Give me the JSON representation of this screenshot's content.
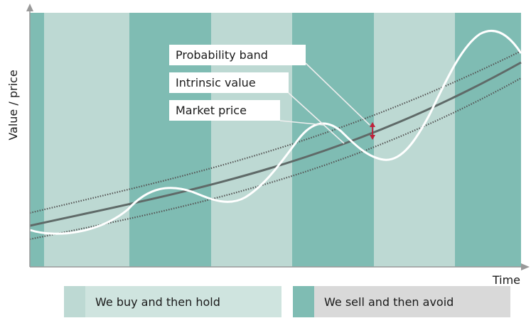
{
  "chart_data": {
    "type": "line",
    "ylabel": "Value / price",
    "xlabel": "Time",
    "annotations": [
      "Probability band",
      "Intrinsic value",
      "Market price"
    ],
    "legend": {
      "buy": "We buy and then hold",
      "sell": "We sell and then avoid"
    },
    "colors": {
      "buy": "#bdd9d3",
      "sell": "#7fbcb3",
      "intrinsic": "#5f6a68",
      "market": "#ffffff",
      "marker": "#c0203a"
    }
  }
}
